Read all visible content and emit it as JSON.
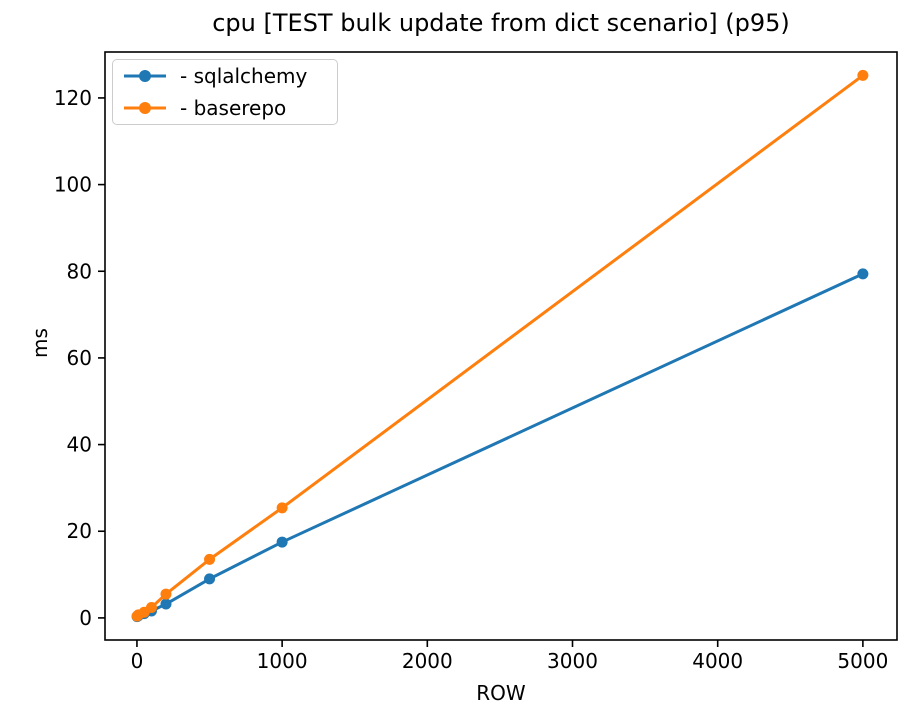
{
  "figure": {
    "title": "cpu [TEST bulk update from dict scenario] (p95)"
  },
  "chart_data": {
    "type": "line",
    "title": "cpu [TEST bulk update from dict scenario] (p95)",
    "xlabel": "ROW",
    "ylabel": "ms",
    "x": [
      1,
      10,
      50,
      100,
      200,
      500,
      1000,
      5000
    ],
    "series": [
      {
        "name": "- sqlalchemy",
        "color": "#1f77b4",
        "values": [
          0.3,
          0.5,
          1.0,
          1.6,
          3.2,
          9.0,
          17.5,
          79.4
        ]
      },
      {
        "name": "- baserepo",
        "color": "#ff7f0e",
        "values": [
          0.4,
          0.7,
          1.3,
          2.4,
          5.5,
          13.5,
          25.4,
          125.2
        ]
      }
    ],
    "xticks": [
      0,
      1000,
      2000,
      3000,
      4000,
      5000
    ],
    "yticks": [
      0,
      20,
      40,
      60,
      80,
      100,
      120
    ],
    "xlim": [
      -220,
      5235
    ],
    "ylim": [
      -5.1,
      130.6
    ],
    "grid": false,
    "legend_position": "upper left",
    "marker": "circle",
    "axis_color": "#000000",
    "background": "#ffffff"
  }
}
